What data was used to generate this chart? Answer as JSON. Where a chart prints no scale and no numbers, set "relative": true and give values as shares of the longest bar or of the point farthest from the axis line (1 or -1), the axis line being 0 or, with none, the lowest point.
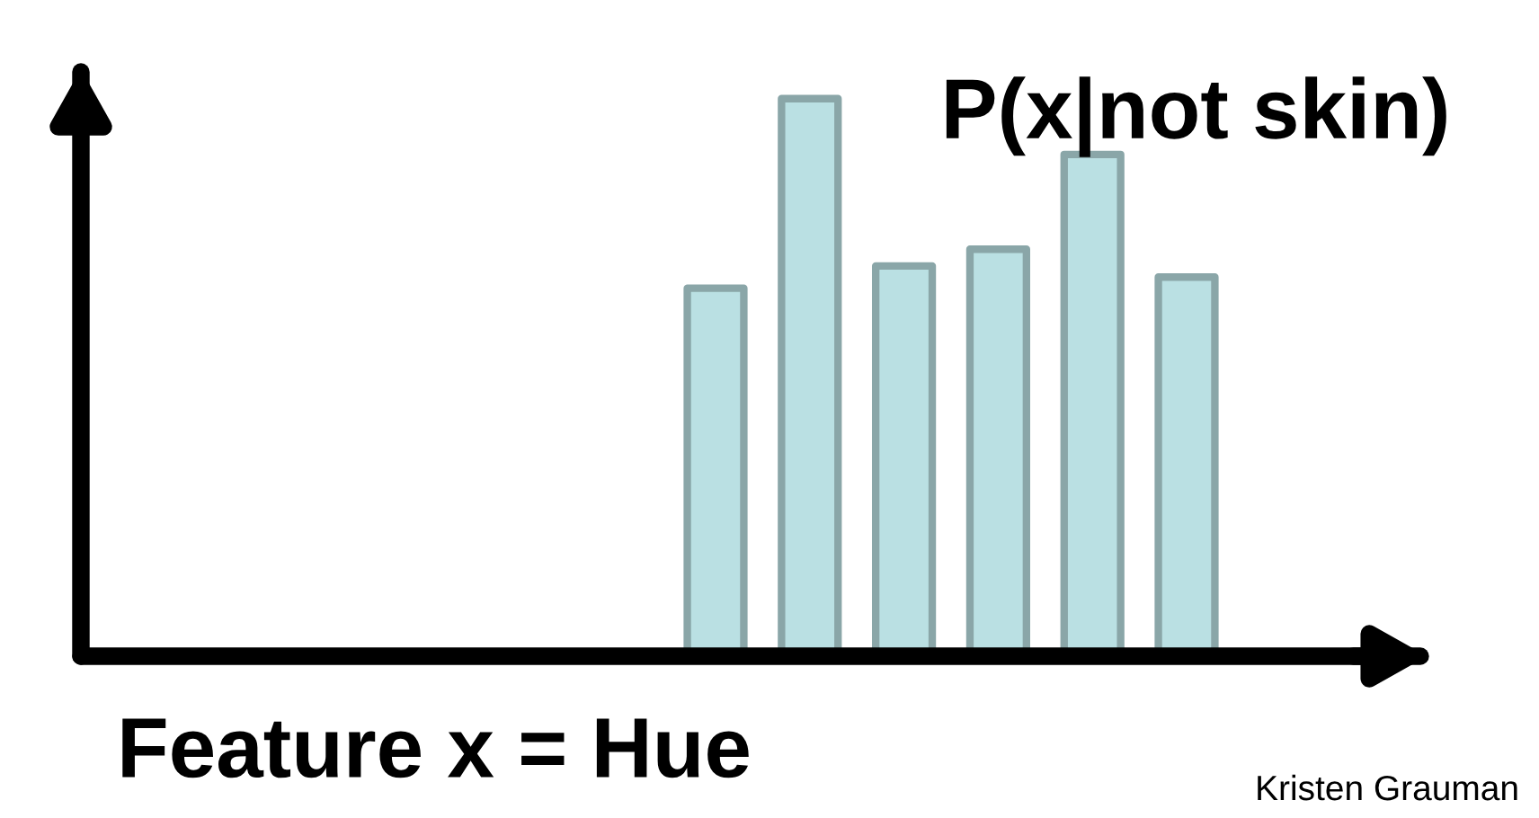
{
  "chart_data": {
    "type": "bar",
    "title": "P(x|not skin)",
    "xlabel": "Feature x = Hue",
    "categories": [
      null,
      null,
      null,
      null,
      null,
      null
    ],
    "values": [
      0.66,
      1,
      0.7,
      0.73,
      0.9,
      0.68
    ],
    "color": "#bae0e3",
    "relative": true,
    "grid": false,
    "legend": false,
    "annotations": [
      "Kristen Grauman"
    ]
  }
}
